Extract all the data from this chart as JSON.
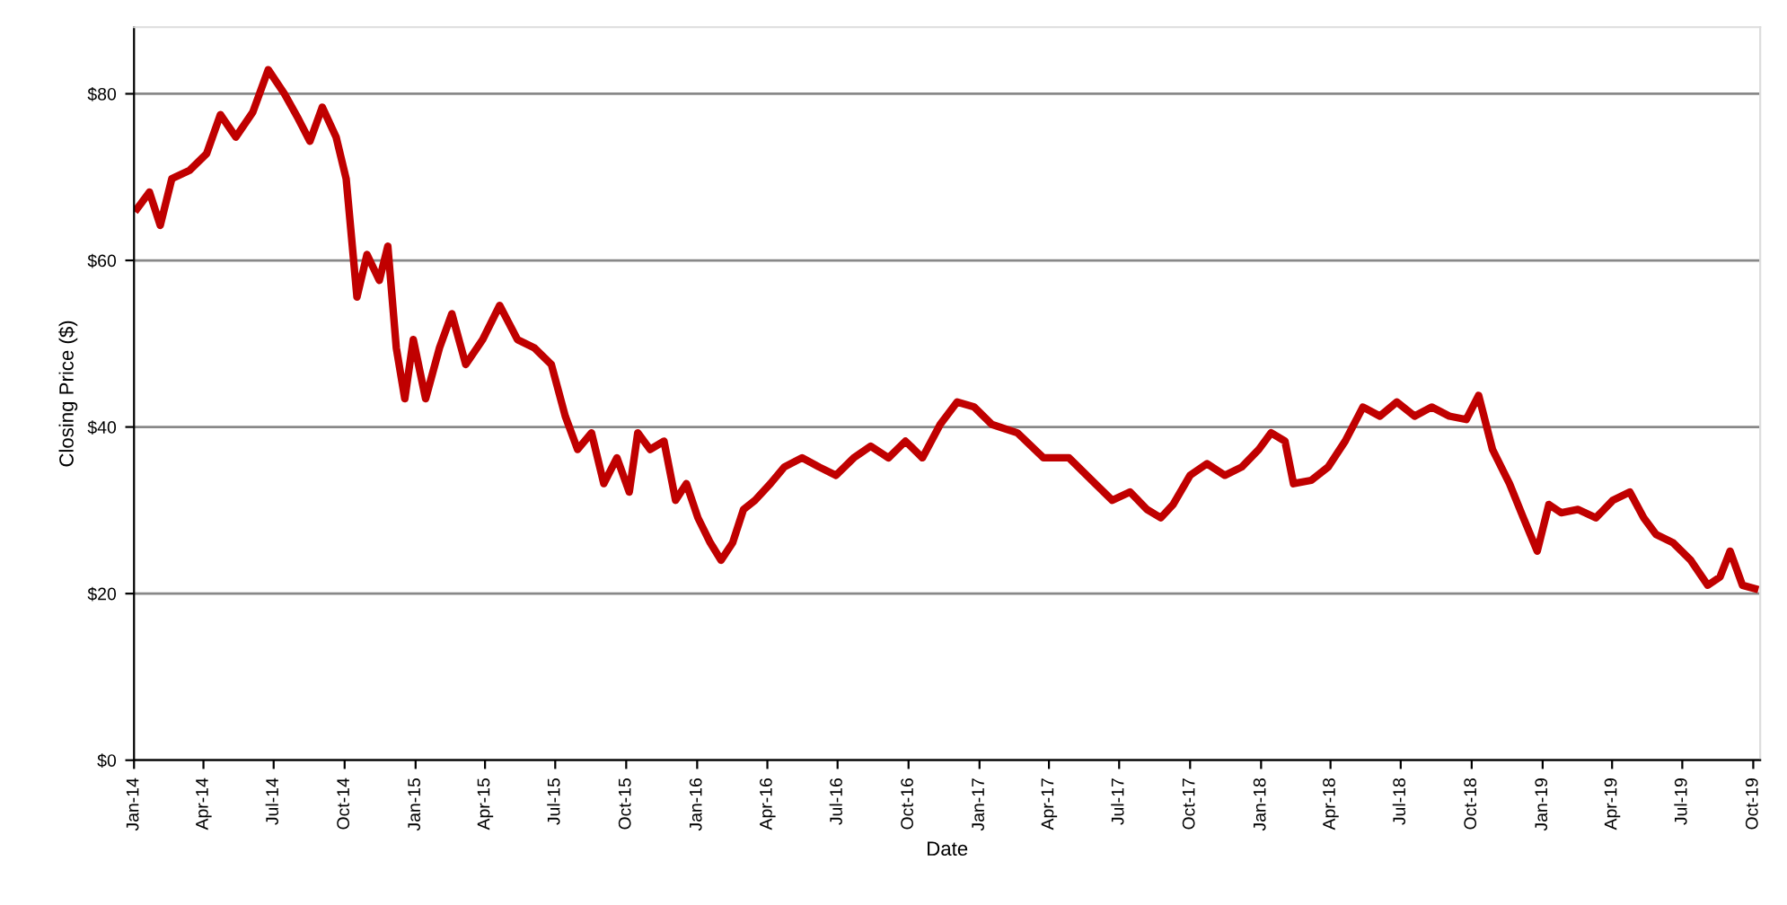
{
  "chart_data": {
    "type": "line",
    "xlabel": "Date",
    "ylabel": "Closing Price ($)",
    "x": [
      "2014-01-05",
      "2014-01-21",
      "2014-02-04",
      "2014-02-19",
      "2014-03-14",
      "2014-04-05",
      "2014-04-23",
      "2014-05-13",
      "2014-06-04",
      "2014-06-24",
      "2014-07-15",
      "2014-08-02",
      "2014-08-17",
      "2014-09-02",
      "2014-09-20",
      "2014-10-03",
      "2014-10-17",
      "2014-10-30",
      "2014-11-15",
      "2014-11-26",
      "2014-12-07",
      "2014-12-18",
      "2014-12-29",
      "2015-01-14",
      "2015-02-01",
      "2015-02-17",
      "2015-03-07",
      "2015-03-29",
      "2015-04-20",
      "2015-05-13",
      "2015-06-04",
      "2015-06-26",
      "2015-07-14",
      "2015-07-30",
      "2015-08-17",
      "2015-09-02",
      "2015-09-19",
      "2015-10-05",
      "2015-10-16",
      "2015-11-01",
      "2015-11-19",
      "2015-12-04",
      "2015-12-18",
      "2016-01-02",
      "2016-01-18",
      "2016-02-01",
      "2016-02-16",
      "2016-03-01",
      "2016-03-16",
      "2016-04-05",
      "2016-04-23",
      "2016-05-16",
      "2016-06-07",
      "2016-06-29",
      "2016-07-22",
      "2016-08-13",
      "2016-09-05",
      "2016-09-27",
      "2016-10-19",
      "2016-11-11",
      "2016-12-03",
      "2016-12-25",
      "2017-01-17",
      "2017-02-19",
      "2017-03-25",
      "2017-04-27",
      "2017-05-31",
      "2017-06-22",
      "2017-07-15",
      "2017-08-06",
      "2017-08-24",
      "2017-09-09",
      "2017-10-01",
      "2017-10-23",
      "2017-11-15",
      "2017-12-07",
      "2017-12-29",
      "2018-01-14",
      "2018-02-01",
      "2018-02-12",
      "2018-03-07",
      "2018-03-29",
      "2018-04-20",
      "2018-05-13",
      "2018-06-04",
      "2018-06-26",
      "2018-07-19",
      "2018-08-10",
      "2018-09-02",
      "2018-09-24",
      "2018-10-10",
      "2018-10-28",
      "2018-11-19",
      "2018-12-07",
      "2018-12-25",
      "2019-01-09",
      "2019-01-25",
      "2019-02-16",
      "2019-03-11",
      "2019-04-02",
      "2019-04-24",
      "2019-05-12",
      "2019-05-28",
      "2019-06-19",
      "2019-07-12",
      "2019-08-03",
      "2019-08-19",
      "2019-09-01",
      "2019-09-17",
      "2019-10-03"
    ],
    "series": [
      {
        "color": "#c00000",
        "values": [
          66.2,
          68.2,
          64.2,
          69.8,
          70.8,
          72.8,
          77.5,
          74.8,
          77.8,
          82.9,
          80,
          77,
          74.3,
          78.4,
          74.8,
          69.8,
          55.6,
          60.7,
          57.6,
          61.7,
          49.5,
          43.4,
          50.5,
          43.4,
          49.5,
          53.6,
          47.5,
          50.5,
          54.6,
          50.5,
          49.5,
          47.5,
          41.3,
          37.3,
          39.3,
          33.2,
          36.3,
          32.2,
          39.3,
          37.3,
          38.3,
          31.2,
          33.2,
          29.1,
          26.1,
          24.0,
          26.1,
          30.1,
          31.2,
          33.2,
          35.2,
          36.3,
          35.2,
          34.2,
          36.3,
          37.7,
          36.3,
          38.3,
          36.3,
          40.3,
          43.0,
          42.4,
          40.3,
          39.3,
          36.3,
          36.3,
          33.2,
          31.2,
          32.2,
          30.1,
          29.1,
          30.7,
          34.2,
          35.6,
          34.2,
          35.2,
          37.3,
          39.3,
          38.3,
          33.2,
          33.6,
          35.2,
          38.3,
          42.4,
          41.3,
          43.0,
          41.3,
          42.4,
          41.3,
          40.9,
          43.8,
          37.3,
          33.2,
          29.1,
          25.1,
          30.7,
          29.7,
          30.1,
          29.1,
          31.2,
          32.2,
          29.1,
          27.1,
          26.1,
          24.0,
          21.0,
          22.0,
          25.1,
          21.0,
          20.6
        ]
      }
    ],
    "xlim": [
      "2014-01-01",
      "2019-10-10"
    ],
    "xticks": [
      {
        "value": "2014-01-01",
        "label": "Jan-14"
      },
      {
        "value": "2014-04-01",
        "label": "Apr-14"
      },
      {
        "value": "2014-07-01",
        "label": "Jul-14"
      },
      {
        "value": "2014-10-01",
        "label": "Oct-14"
      },
      {
        "value": "2015-01-01",
        "label": "Jan-15"
      },
      {
        "value": "2015-04-01",
        "label": "Apr-15"
      },
      {
        "value": "2015-07-01",
        "label": "Jul-15"
      },
      {
        "value": "2015-10-01",
        "label": "Oct-15"
      },
      {
        "value": "2016-01-01",
        "label": "Jan-16"
      },
      {
        "value": "2016-04-01",
        "label": "Apr-16"
      },
      {
        "value": "2016-07-01",
        "label": "Jul-16"
      },
      {
        "value": "2016-10-01",
        "label": "Oct-16"
      },
      {
        "value": "2017-01-01",
        "label": "Jan-17"
      },
      {
        "value": "2017-04-01",
        "label": "Apr-17"
      },
      {
        "value": "2017-07-01",
        "label": "Jul-17"
      },
      {
        "value": "2017-10-01",
        "label": "Oct-17"
      },
      {
        "value": "2018-01-01",
        "label": "Jan-18"
      },
      {
        "value": "2018-04-01",
        "label": "Apr-18"
      },
      {
        "value": "2018-07-01",
        "label": "Jul-18"
      },
      {
        "value": "2018-10-01",
        "label": "Oct-18"
      },
      {
        "value": "2019-01-01",
        "label": "Jan-19"
      },
      {
        "value": "2019-04-01",
        "label": "Apr-19"
      },
      {
        "value": "2019-07-01",
        "label": "Jul-19"
      },
      {
        "value": "2019-10-01",
        "label": "Oct-19"
      }
    ],
    "ylim": [
      0,
      88
    ],
    "yticks": [
      {
        "value": 0,
        "label": "$0"
      },
      {
        "value": 20,
        "label": "$20"
      },
      {
        "value": 40,
        "label": "$40"
      },
      {
        "value": 60,
        "label": "$60"
      },
      {
        "value": 80,
        "label": "$80"
      }
    ],
    "grid": "y",
    "legend": false,
    "marker": "none",
    "line_style": "solid"
  }
}
